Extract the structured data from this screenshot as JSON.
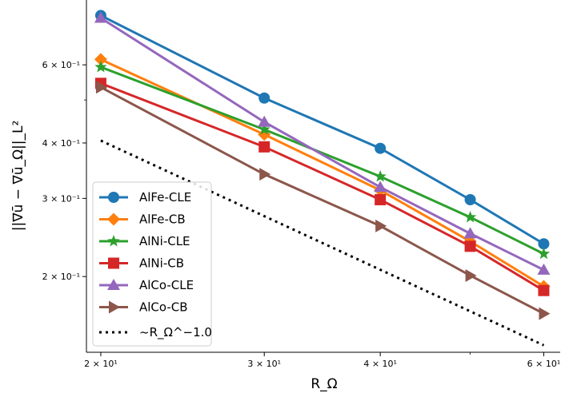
{
  "chart_data": {
    "type": "line",
    "x_scale": "log",
    "y_scale": "log",
    "xlim": [
      19.3,
      62.5
    ],
    "ylim": [
      0.135,
      0.84
    ],
    "x_ticks": [
      {
        "value": 20,
        "label": "2 × 10¹"
      },
      {
        "value": 30,
        "label": "3 × 10¹"
      },
      {
        "value": 40,
        "label": "4 × 10¹"
      },
      {
        "value": 60,
        "label": "6 × 10¹"
      }
    ],
    "y_ticks": [
      {
        "value": 0.2,
        "label": "2 × 10⁻¹"
      },
      {
        "value": 0.3,
        "label": "3 × 10⁻¹"
      },
      {
        "value": 0.4,
        "label": "4 × 10⁻¹"
      },
      {
        "value": 0.6,
        "label": "6 × 10⁻¹"
      }
    ],
    "xlabel": "R_Ω",
    "ylabel": "||∇ū − ∇ū_Ω||_L²",
    "legend_position": "lower-left",
    "x": [
      20,
      30,
      40,
      50,
      60
    ],
    "series": [
      {
        "name": "AlFe-CLE",
        "color": "#1f77b4",
        "marker": "circle",
        "values": [
          0.775,
          0.505,
          0.389,
          0.298,
          0.237
        ]
      },
      {
        "name": "AlFe-CB",
        "color": "#ff7f0e",
        "marker": "diamond",
        "values": [
          0.617,
          0.418,
          0.313,
          0.24,
          0.19
        ]
      },
      {
        "name": "AlNi-CLE",
        "color": "#2ca02c",
        "marker": "star",
        "values": [
          0.593,
          0.429,
          0.336,
          0.272,
          0.225
        ]
      },
      {
        "name": "AlNi-CB",
        "color": "#d62728",
        "marker": "square",
        "values": [
          0.545,
          0.392,
          0.298,
          0.234,
          0.186
        ]
      },
      {
        "name": "AlCo-CLE",
        "color": "#9467bd",
        "marker": "triangle-up",
        "values": [
          0.765,
          0.446,
          0.318,
          0.25,
          0.207
        ]
      },
      {
        "name": "AlCo-CB",
        "color": "#8c564b",
        "marker": "triangle-right",
        "values": [
          0.534,
          0.34,
          0.26,
          0.201,
          0.165
        ]
      }
    ],
    "reference_line": {
      "label": "~R_Ω^−1.0",
      "color": "#000000",
      "style": "dotted",
      "x": [
        20,
        60
      ],
      "values": [
        0.405,
        0.14
      ]
    }
  }
}
